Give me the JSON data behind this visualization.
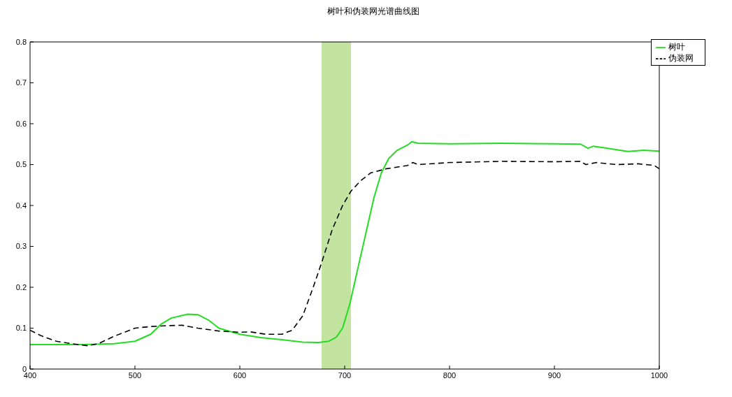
{
  "chart_data": {
    "type": "line",
    "title": "树叶和伪装网光谱曲线图",
    "xlim": [
      400,
      1000
    ],
    "xticks": [
      400,
      500,
      600,
      700,
      800,
      900,
      1000
    ],
    "ylim": [
      0,
      0.8
    ],
    "yticks": [
      0,
      0.1,
      0.2,
      0.3,
      0.4,
      0.5,
      0.6,
      0.7,
      0.8
    ],
    "grid": false,
    "legend": "top right",
    "marker": "none",
    "bands": [
      {
        "axis": "x",
        "from": 678,
        "to": 706,
        "color": "#c3e3a0"
      }
    ],
    "series": [
      {
        "name": "树叶",
        "color": "#22dd22",
        "line_style": "solid",
        "x": [
          400,
          450,
          480,
          500,
          515,
          525,
          535,
          550,
          560,
          570,
          580,
          600,
          620,
          640,
          660,
          675,
          685,
          692,
          698,
          705,
          712,
          720,
          728,
          735,
          742,
          750,
          760,
          764,
          770,
          800,
          850,
          900,
          925,
          932,
          937,
          950,
          970,
          985,
          1000
        ],
        "values": [
          0.06,
          0.06,
          0.062,
          0.068,
          0.085,
          0.11,
          0.125,
          0.134,
          0.133,
          0.12,
          0.1,
          0.085,
          0.077,
          0.072,
          0.066,
          0.065,
          0.068,
          0.078,
          0.1,
          0.16,
          0.24,
          0.33,
          0.42,
          0.48,
          0.515,
          0.535,
          0.548,
          0.556,
          0.552,
          0.551,
          0.552,
          0.551,
          0.55,
          0.54,
          0.545,
          0.54,
          0.532,
          0.535,
          0.533
        ]
      },
      {
        "name": "伪装网",
        "color": "#000000",
        "line_style": "dashed",
        "x": [
          400,
          410,
          425,
          440,
          455,
          465,
          480,
          500,
          515,
          530,
          545,
          560,
          580,
          600,
          610,
          625,
          640,
          650,
          660,
          670,
          678,
          688,
          698,
          706,
          715,
          725,
          740,
          760,
          765,
          770,
          800,
          850,
          900,
          925,
          930,
          940,
          960,
          980,
          995,
          1000
        ],
        "values": [
          0.095,
          0.082,
          0.068,
          0.062,
          0.057,
          0.062,
          0.08,
          0.1,
          0.104,
          0.106,
          0.107,
          0.1,
          0.093,
          0.09,
          0.091,
          0.085,
          0.085,
          0.095,
          0.13,
          0.2,
          0.26,
          0.34,
          0.4,
          0.435,
          0.46,
          0.48,
          0.49,
          0.498,
          0.505,
          0.5,
          0.505,
          0.508,
          0.507,
          0.508,
          0.5,
          0.505,
          0.5,
          0.502,
          0.498,
          0.49
        ]
      }
    ]
  }
}
